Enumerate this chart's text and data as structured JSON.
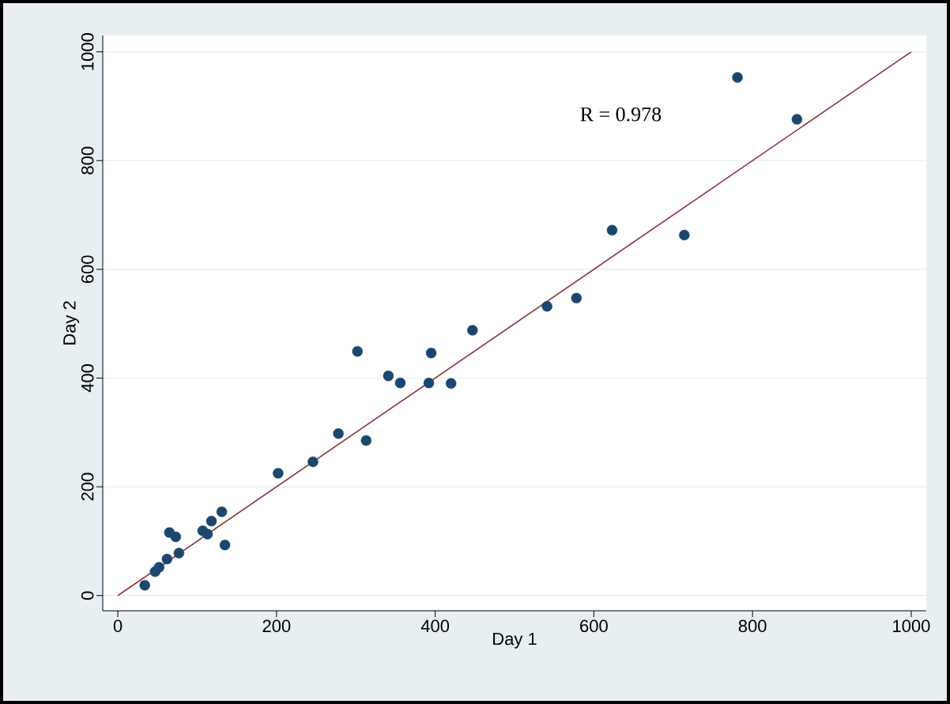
{
  "chart_data": {
    "type": "scatter",
    "xlabel": "Day 1",
    "ylabel": "Day 2",
    "xlim": [
      -19,
      1019
    ],
    "ylim": [
      -28,
      1030
    ],
    "xticks": [
      0,
      200,
      400,
      600,
      800,
      1000
    ],
    "yticks": [
      0,
      200,
      400,
      600,
      800,
      1000
    ],
    "grid": "y",
    "annotations": [
      "R = 0.978"
    ],
    "series": [
      {
        "color": "#1a476f",
        "marker": "circle",
        "x": [
          34,
          47,
          52,
          62,
          65,
          73,
          77,
          107,
          113,
          118,
          131,
          135,
          202,
          246,
          278,
          302,
          313,
          341,
          356,
          392,
          395,
          420,
          447,
          541,
          578,
          623,
          714,
          781,
          856
        ],
        "values": [
          19,
          44,
          52,
          67,
          116,
          108,
          78,
          119,
          113,
          137,
          154,
          93,
          225,
          246,
          298,
          449,
          285,
          404,
          391,
          391,
          446,
          390,
          488,
          532,
          547,
          672,
          663,
          953,
          876
        ]
      },
      {
        "type": "line",
        "color": "#90353b",
        "marker": "none",
        "line_style": "solid",
        "x": [
          0,
          1000
        ],
        "values": [
          0,
          1000
        ]
      }
    ]
  }
}
